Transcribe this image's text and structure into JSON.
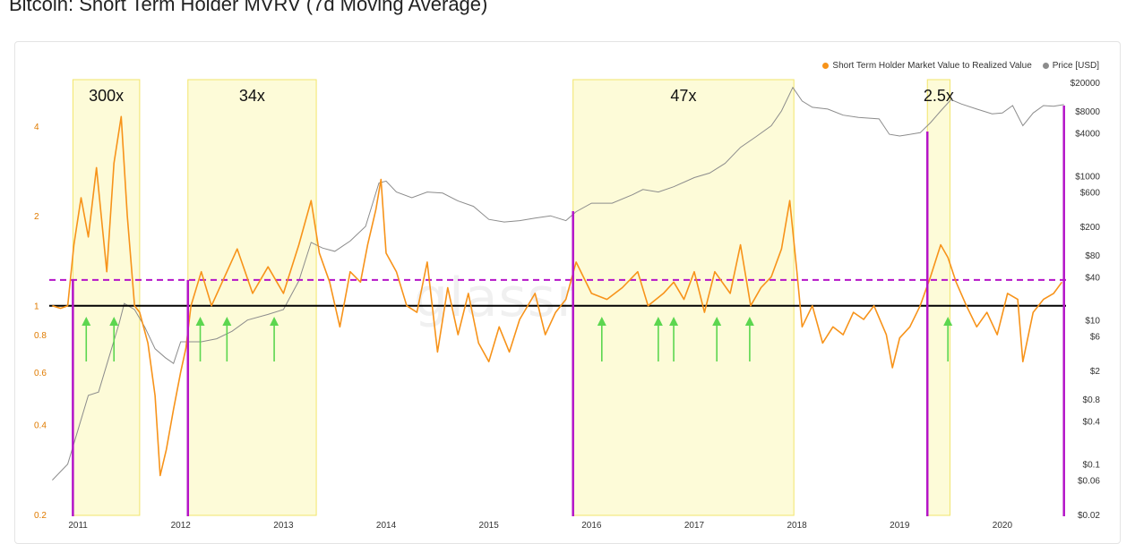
{
  "title": "Bitcoin: Short Term Holder MVRV (7d Moving Average)",
  "watermark": "glassnode",
  "legend": {
    "mvrv_label": "Short Term Holder Market Value to Realized Value",
    "price_label": "Price [USD]"
  },
  "colors": {
    "mvrv": "#f7931a",
    "price": "#8c8c8c",
    "band_fill": "#fdfbd8",
    "band_border": "#f2e56b",
    "purple": "#b414c8",
    "baseline": "#000000",
    "arrow": "#5cd64f",
    "left_axis_text": "#e07b00",
    "right_axis_text": "#333333"
  },
  "chart_data": {
    "type": "line",
    "title": "Bitcoin: Short Term Holder MVRV (7d Moving Average)",
    "x_ticks": [
      "2011",
      "2012",
      "2013",
      "2014",
      "2015",
      "2016",
      "2017",
      "2018",
      "2019",
      "2020"
    ],
    "x_range": [
      2010.72,
      2020.62
    ],
    "y_left": {
      "scale": "log",
      "range": [
        0.2,
        5.6
      ],
      "ticks": [
        "4",
        "2",
        "1",
        "0.8",
        "0.6",
        "0.4",
        "0.2"
      ]
    },
    "y_right": {
      "scale": "log",
      "range": [
        0.02,
        20000
      ],
      "ticks": [
        "$20000",
        "$8000",
        "$4000",
        "$1000",
        "$600",
        "$200",
        "$80",
        "$40",
        "$10",
        "$6",
        "$2",
        "$0.8",
        "$0.4",
        "$0.1",
        "$0.06",
        "$0.02"
      ]
    },
    "grid": false,
    "legend_position": "top-right",
    "series": [
      {
        "name": "Short Term Holder Market Value to Realized Value",
        "axis": "left",
        "points": [
          [
            2010.75,
            1.0
          ],
          [
            2010.83,
            0.98
          ],
          [
            2010.9,
            1.0
          ],
          [
            2010.96,
            1.6
          ],
          [
            2011.03,
            2.3
          ],
          [
            2011.1,
            1.7
          ],
          [
            2011.18,
            2.9
          ],
          [
            2011.28,
            1.3
          ],
          [
            2011.35,
            3.0
          ],
          [
            2011.42,
            4.3
          ],
          [
            2011.48,
            2.0
          ],
          [
            2011.55,
            1.0
          ],
          [
            2011.6,
            0.95
          ],
          [
            2011.68,
            0.75
          ],
          [
            2011.75,
            0.5
          ],
          [
            2011.8,
            0.27
          ],
          [
            2011.86,
            0.33
          ],
          [
            2011.93,
            0.45
          ],
          [
            2012.0,
            0.6
          ],
          [
            2012.05,
            0.72
          ],
          [
            2012.1,
            1.0
          ],
          [
            2012.2,
            1.3
          ],
          [
            2012.3,
            1.0
          ],
          [
            2012.45,
            1.3
          ],
          [
            2012.55,
            1.55
          ],
          [
            2012.7,
            1.1
          ],
          [
            2012.85,
            1.35
          ],
          [
            2013.0,
            1.1
          ],
          [
            2013.15,
            1.6
          ],
          [
            2013.27,
            2.25
          ],
          [
            2013.35,
            1.5
          ],
          [
            2013.45,
            1.2
          ],
          [
            2013.55,
            0.85
          ],
          [
            2013.65,
            1.3
          ],
          [
            2013.75,
            1.2
          ],
          [
            2013.82,
            1.6
          ],
          [
            2013.9,
            2.1
          ],
          [
            2013.95,
            2.65
          ],
          [
            2014.0,
            1.5
          ],
          [
            2014.1,
            1.3
          ],
          [
            2014.2,
            1.0
          ],
          [
            2014.3,
            0.95
          ],
          [
            2014.4,
            1.4
          ],
          [
            2014.5,
            0.7
          ],
          [
            2014.6,
            1.15
          ],
          [
            2014.7,
            0.8
          ],
          [
            2014.8,
            1.1
          ],
          [
            2014.9,
            0.75
          ],
          [
            2015.0,
            0.65
          ],
          [
            2015.1,
            0.85
          ],
          [
            2015.2,
            0.7
          ],
          [
            2015.3,
            0.9
          ],
          [
            2015.45,
            1.1
          ],
          [
            2015.55,
            0.8
          ],
          [
            2015.65,
            0.95
          ],
          [
            2015.75,
            1.05
          ],
          [
            2015.85,
            1.4
          ],
          [
            2016.0,
            1.1
          ],
          [
            2016.15,
            1.05
          ],
          [
            2016.3,
            1.15
          ],
          [
            2016.45,
            1.3
          ],
          [
            2016.55,
            1.0
          ],
          [
            2016.7,
            1.1
          ],
          [
            2016.8,
            1.2
          ],
          [
            2016.9,
            1.05
          ],
          [
            2017.0,
            1.3
          ],
          [
            2017.1,
            0.95
          ],
          [
            2017.2,
            1.3
          ],
          [
            2017.35,
            1.1
          ],
          [
            2017.45,
            1.6
          ],
          [
            2017.55,
            1.0
          ],
          [
            2017.65,
            1.15
          ],
          [
            2017.75,
            1.25
          ],
          [
            2017.85,
            1.55
          ],
          [
            2017.93,
            2.25
          ],
          [
            2018.0,
            1.3
          ],
          [
            2018.05,
            0.85
          ],
          [
            2018.15,
            1.0
          ],
          [
            2018.25,
            0.75
          ],
          [
            2018.35,
            0.85
          ],
          [
            2018.45,
            0.8
          ],
          [
            2018.55,
            0.95
          ],
          [
            2018.65,
            0.9
          ],
          [
            2018.75,
            1.0
          ],
          [
            2018.87,
            0.8
          ],
          [
            2018.93,
            0.62
          ],
          [
            2019.0,
            0.78
          ],
          [
            2019.1,
            0.85
          ],
          [
            2019.2,
            1.0
          ],
          [
            2019.3,
            1.25
          ],
          [
            2019.4,
            1.6
          ],
          [
            2019.47,
            1.45
          ],
          [
            2019.55,
            1.2
          ],
          [
            2019.65,
            1.0
          ],
          [
            2019.75,
            0.85
          ],
          [
            2019.85,
            0.95
          ],
          [
            2019.95,
            0.8
          ],
          [
            2020.05,
            1.1
          ],
          [
            2020.15,
            1.05
          ],
          [
            2020.2,
            0.65
          ],
          [
            2020.3,
            0.95
          ],
          [
            2020.4,
            1.05
          ],
          [
            2020.5,
            1.1
          ],
          [
            2020.58,
            1.2
          ]
        ]
      },
      {
        "name": "Price [USD]",
        "axis": "right",
        "points": [
          [
            2010.75,
            0.06
          ],
          [
            2010.9,
            0.1
          ],
          [
            2011.0,
            0.3
          ],
          [
            2011.1,
            0.9
          ],
          [
            2011.2,
            1.0
          ],
          [
            2011.3,
            3
          ],
          [
            2011.4,
            9
          ],
          [
            2011.45,
            17
          ],
          [
            2011.55,
            14
          ],
          [
            2011.65,
            8
          ],
          [
            2011.75,
            4
          ],
          [
            2011.85,
            3
          ],
          [
            2011.93,
            2.5
          ],
          [
            2012.0,
            5
          ],
          [
            2012.2,
            5
          ],
          [
            2012.35,
            5.5
          ],
          [
            2012.5,
            7
          ],
          [
            2012.65,
            10
          ],
          [
            2012.85,
            12
          ],
          [
            2013.0,
            14
          ],
          [
            2013.15,
            35
          ],
          [
            2013.27,
            120
          ],
          [
            2013.38,
            100
          ],
          [
            2013.5,
            90
          ],
          [
            2013.65,
            125
          ],
          [
            2013.8,
            200
          ],
          [
            2013.93,
            800
          ],
          [
            2014.0,
            850
          ],
          [
            2014.1,
            600
          ],
          [
            2014.25,
            500
          ],
          [
            2014.4,
            600
          ],
          [
            2014.55,
            580
          ],
          [
            2014.7,
            450
          ],
          [
            2014.85,
            380
          ],
          [
            2015.0,
            250
          ],
          [
            2015.15,
            230
          ],
          [
            2015.3,
            240
          ],
          [
            2015.45,
            260
          ],
          [
            2015.6,
            280
          ],
          [
            2015.75,
            240
          ],
          [
            2015.85,
            320
          ],
          [
            2016.0,
            420
          ],
          [
            2016.2,
            420
          ],
          [
            2016.4,
            550
          ],
          [
            2016.5,
            650
          ],
          [
            2016.65,
            600
          ],
          [
            2016.8,
            710
          ],
          [
            2017.0,
            950
          ],
          [
            2017.15,
            1100
          ],
          [
            2017.3,
            1500
          ],
          [
            2017.45,
            2500
          ],
          [
            2017.6,
            3500
          ],
          [
            2017.75,
            5000
          ],
          [
            2017.85,
            8000
          ],
          [
            2017.96,
            17000
          ],
          [
            2018.05,
            11000
          ],
          [
            2018.15,
            9000
          ],
          [
            2018.3,
            8500
          ],
          [
            2018.45,
            7000
          ],
          [
            2018.6,
            6500
          ],
          [
            2018.8,
            6200
          ],
          [
            2018.9,
            3800
          ],
          [
            2019.0,
            3600
          ],
          [
            2019.2,
            4000
          ],
          [
            2019.3,
            5500
          ],
          [
            2019.4,
            8000
          ],
          [
            2019.5,
            11500
          ],
          [
            2019.6,
            10000
          ],
          [
            2019.75,
            8500
          ],
          [
            2019.9,
            7300
          ],
          [
            2020.0,
            7500
          ],
          [
            2020.1,
            9500
          ],
          [
            2020.2,
            5000
          ],
          [
            2020.3,
            7500
          ],
          [
            2020.4,
            9500
          ],
          [
            2020.5,
            9300
          ],
          [
            2020.6,
            9800
          ]
        ]
      }
    ],
    "reference_lines": [
      {
        "axis": "left",
        "value": 1.0,
        "style": "solid"
      },
      {
        "axis": "left",
        "value": 1.22,
        "style": "dashed"
      }
    ],
    "highlight_bands": [
      {
        "x0": 2010.95,
        "x1": 2011.6,
        "label": "300x"
      },
      {
        "x0": 2012.07,
        "x1": 2013.32,
        "label": "34x"
      },
      {
        "x0": 2015.82,
        "x1": 2017.97,
        "label": "47x"
      },
      {
        "x0": 2019.27,
        "x1": 2019.49,
        "label": "2.5x"
      }
    ],
    "vertical_markers": [
      2010.95,
      2012.07,
      2015.82,
      2019.27,
      2020.6
    ],
    "up_arrows": [
      2011.08,
      2011.35,
      2012.19,
      2012.45,
      2012.91,
      2016.1,
      2016.65,
      2016.8,
      2017.22,
      2017.54,
      2019.47
    ]
  }
}
